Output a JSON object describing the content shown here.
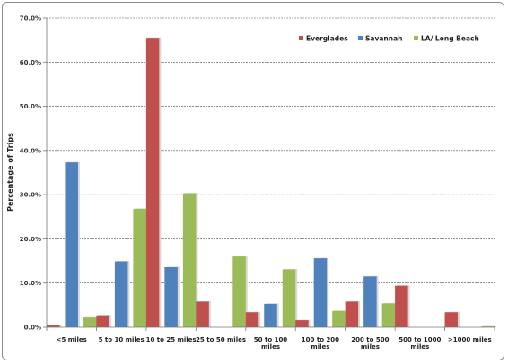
{
  "chart_data": {
    "type": "bar",
    "title": "",
    "xlabel": "",
    "ylabel": "Percentage of Trips",
    "ylim": [
      0,
      70
    ],
    "yticks": [
      "0.0%",
      "10.0%",
      "20.0%",
      "30.0%",
      "40.0%",
      "50.0%",
      "60.0%",
      "70.0%"
    ],
    "grid": true,
    "legend_position": "top-right",
    "categories": [
      [
        "<5 miles"
      ],
      [
        "5 to 10 miles"
      ],
      [
        "10 to 25 miles"
      ],
      [
        "25 to 50 miles"
      ],
      [
        "50 to 100",
        "miles"
      ],
      [
        "100 to 200",
        "miles"
      ],
      [
        "200 to 500",
        "miles"
      ],
      [
        "500 to 1000",
        "miles"
      ],
      [
        ">1000 miles"
      ]
    ],
    "series": [
      {
        "name": "Everglades",
        "color": "#c0504d",
        "values": [
          0.4,
          2.7,
          65.5,
          5.8,
          3.4,
          1.6,
          5.8,
          9.4,
          3.4
        ]
      },
      {
        "name": "Savannah",
        "color": "#4f81bd",
        "values": [
          37.3,
          14.9,
          13.6,
          0.0,
          5.3,
          15.6,
          11.5,
          0.0,
          0.0
        ]
      },
      {
        "name": "LA/ Long Beach",
        "color": "#9bbb59",
        "values": [
          2.2,
          26.8,
          30.3,
          16.0,
          13.1,
          3.7,
          5.4,
          0.0,
          0.2
        ]
      }
    ]
  }
}
